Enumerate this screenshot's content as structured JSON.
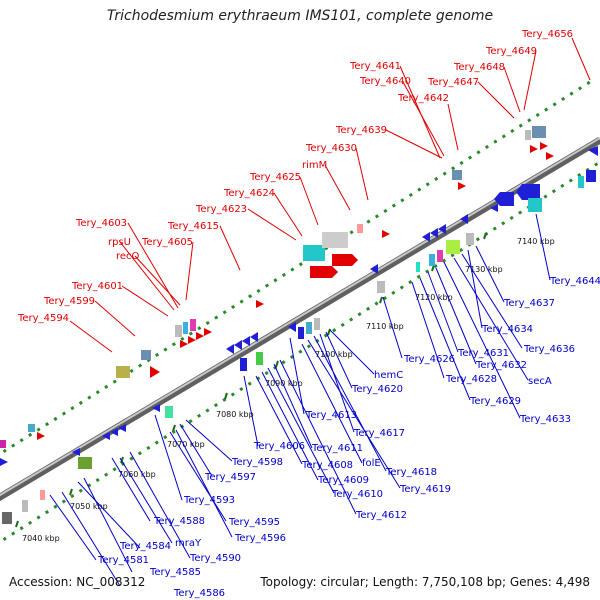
{
  "title": "Trichodesmium erythraeum IMS101, complete genome",
  "accession": "Accession: NC_008312",
  "summary": "Topology: circular; Length: 7,750,108 bp; Genes: 4,498",
  "colors": {
    "forward_label": "#e00000",
    "reverse_label": "#0000c8",
    "backbone": "#888888",
    "dots": "#2a8a2a",
    "tick": "#1a6a1a"
  },
  "ticks": [
    "7040 kbp",
    "7050 kbp",
    "7060 kbp",
    "7070 kbp",
    "7080 kbp",
    "7090 kbp",
    "7100 kbp",
    "7110 kbp",
    "7120 kbp",
    "7130 kbp",
    "7140 kbp"
  ],
  "forward_labels": [
    "Tery_4594",
    "Tery_4599",
    "Tery_4601",
    "Tery_4603",
    "rpsU",
    "recO",
    "Tery_4605",
    "Tery_4615",
    "Tery_4623",
    "Tery_4624",
    "Tery_4625",
    "rimM",
    "Tery_4630",
    "Tery_4639",
    "Tery_4642",
    "Tery_4640",
    "Tery_4641",
    "Tery_4647",
    "Tery_4648",
    "Tery_4649",
    "Tery_4656"
  ],
  "reverse_labels": [
    "Tery_4586",
    "Tery_4585",
    "Tery_4581",
    "Tery_4584",
    "mraY",
    "Tery_4590",
    "Tery_4588",
    "Tery_4596",
    "Tery_4595",
    "Tery_4593",
    "Tery_4597",
    "Tery_4598",
    "Tery_4606",
    "Tery_4608",
    "Tery_4609",
    "Tery_4610",
    "Tery_4611",
    "Tery_4612",
    "Tery_4613",
    "folE",
    "Tery_4619",
    "Tery_4618",
    "Tery_4617",
    "Tery_4620",
    "hemC",
    "Tery_4626",
    "Tery_4628",
    "Tery_4629",
    "Tery_4631",
    "Tery_4632",
    "Tery_4633",
    "secA",
    "Tery_4636",
    "Tery_4634",
    "Tery_4637",
    "Tery_4644"
  ]
}
